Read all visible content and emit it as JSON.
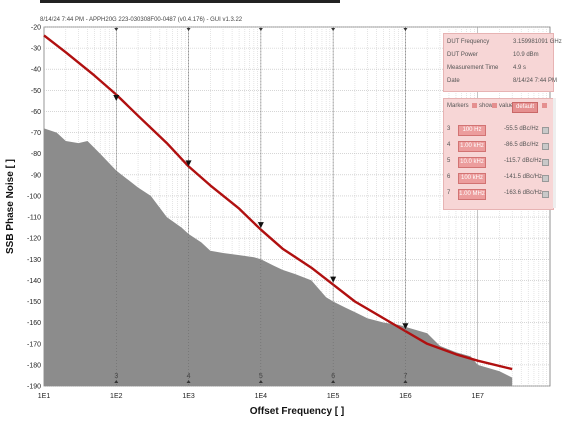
{
  "header": "8/14/24 7:44 PM - APPH20G 223-030308F00-0487 (v0.4.176) - GUI v1.3.22",
  "chart_data": {
    "type": "line",
    "xlabel": "Offset Frequency [ ]",
    "ylabel": "SSB Phase Noise [ ]",
    "xscale": "log",
    "xlim": [
      10,
      100000000
    ],
    "ylim": [
      -190,
      -20
    ],
    "x_ticks": [
      "1E1",
      "1E2",
      "1E3",
      "1E4",
      "1E5",
      "1E6",
      "1E7"
    ],
    "y_ticks": [
      "-20",
      "-30",
      "-40",
      "-50",
      "-60",
      "-70",
      "-80",
      "-90",
      "-100",
      "-110",
      "-120",
      "-130",
      "-140",
      "-150",
      "-160",
      "-170",
      "-180",
      "-190"
    ],
    "grid": true,
    "series": [
      {
        "color": "#b01010",
        "points": [
          [
            10,
            -24
          ],
          [
            20,
            -32
          ],
          [
            50,
            -43
          ],
          [
            100,
            -52
          ],
          [
            200,
            -62
          ],
          [
            500,
            -75
          ],
          [
            1000,
            -86
          ],
          [
            2000,
            -95
          ],
          [
            5000,
            -106
          ],
          [
            10000,
            -116
          ],
          [
            20000,
            -125
          ],
          [
            50000,
            -134
          ],
          [
            100000,
            -142
          ],
          [
            200000,
            -150
          ],
          [
            500000,
            -158
          ],
          [
            1000000,
            -164
          ],
          [
            2000000,
            -170
          ],
          [
            5000000,
            -175
          ],
          [
            10000000,
            -178
          ],
          [
            30000000,
            -182
          ]
        ]
      },
      {
        "color": "#8c8c8c",
        "points": [
          [
            10,
            -68
          ],
          [
            15,
            -70
          ],
          [
            20,
            -74
          ],
          [
            30,
            -75
          ],
          [
            40,
            -74
          ],
          [
            60,
            -80
          ],
          [
            100,
            -88
          ],
          [
            200,
            -96
          ],
          [
            300,
            -100
          ],
          [
            500,
            -110
          ],
          [
            800,
            -115
          ],
          [
            1000,
            -118
          ],
          [
            1500,
            -122
          ],
          [
            2000,
            -126
          ],
          [
            3000,
            -127
          ],
          [
            5000,
            -128
          ],
          [
            8000,
            -129
          ],
          [
            10000,
            -130
          ],
          [
            15000,
            -133
          ],
          [
            20000,
            -135
          ],
          [
            30000,
            -137
          ],
          [
            50000,
            -140
          ],
          [
            80000,
            -148
          ],
          [
            100000,
            -150
          ],
          [
            150000,
            -153
          ],
          [
            200000,
            -155
          ],
          [
            300000,
            -158
          ],
          [
            500000,
            -160
          ],
          [
            800000,
            -161
          ],
          [
            1000000,
            -162
          ],
          [
            2000000,
            -165
          ],
          [
            3000000,
            -171
          ],
          [
            5000000,
            -174
          ],
          [
            8000000,
            -176
          ],
          [
            10000000,
            -180
          ],
          [
            20000000,
            -183
          ],
          [
            30000000,
            -186
          ]
        ]
      }
    ],
    "marker_points": [
      {
        "id": "3",
        "x": 100,
        "y": -55.5
      },
      {
        "id": "4",
        "x": 1000,
        "y": -86.5
      },
      {
        "id": "5",
        "x": 10000,
        "y": -115.7
      },
      {
        "id": "6",
        "x": 100000,
        "y": -141.5
      },
      {
        "id": "7",
        "x": 1000000,
        "y": -163.6
      }
    ]
  },
  "info": {
    "rows": [
      {
        "label": "DUT Frequency",
        "value": "3.159981091 GHz"
      },
      {
        "label": "DUT Power",
        "value": "10.9 dBm"
      },
      {
        "label": "Measurement Time",
        "value": "4.9 s"
      },
      {
        "label": "Date",
        "value": "8/14/24 7:44 PM"
      }
    ]
  },
  "markers_panel": {
    "title": "Markers",
    "show_label": "show",
    "value_label": "value",
    "default_label": "default",
    "rows": [
      {
        "n": "3",
        "freq": "100 Hz",
        "value": "-55.5 dBc/Hz"
      },
      {
        "n": "4",
        "freq": "1.00 kHz",
        "value": "-86.5 dBc/Hz"
      },
      {
        "n": "5",
        "freq": "10.0 kHz",
        "value": "-115.7 dBc/Hz"
      },
      {
        "n": "6",
        "freq": "100 kHz",
        "value": "-141.5 dBc/Hz"
      },
      {
        "n": "7",
        "freq": "1.00 MHz",
        "value": "-163.6 dBc/Hz"
      }
    ]
  }
}
